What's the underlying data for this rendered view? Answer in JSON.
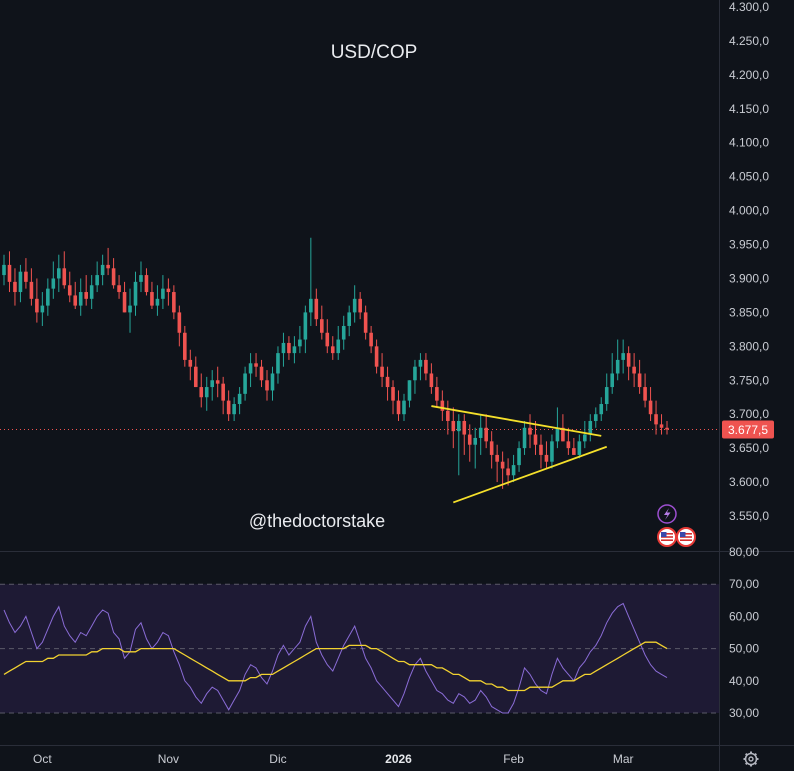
{
  "chart_data": [
    {
      "type": "candlestick",
      "title": "USD/COP",
      "watermark": "@thedoctorstake",
      "ylim": [
        3520,
        4300
      ],
      "yticks": [
        "4.300,0",
        "4.250,0",
        "4.200,0",
        "4.150,0",
        "4.100,0",
        "4.050,0",
        "4.000,0",
        "3.950,0",
        "3.900,0",
        "3.850,0",
        "3.800,0",
        "3.750,0",
        "3.700,0",
        "3.650,0",
        "3.600,0",
        "3.550,0"
      ],
      "ytick_values": [
        4300,
        4250,
        4200,
        4150,
        4100,
        4050,
        4000,
        3950,
        3900,
        3850,
        3800,
        3750,
        3700,
        3650,
        3600,
        3550
      ],
      "last_price": 3677.5,
      "last_price_label": "3.677,5",
      "up_color": "#26a69a",
      "down_color": "#ef5350",
      "x": [
        "2025-09-22",
        "2025-09-23",
        "2025-09-24",
        "2025-09-25",
        "2025-09-26",
        "2025-09-29",
        "2025-09-30",
        "2025-10-01",
        "2025-10-02",
        "2025-10-03",
        "2025-10-06",
        "2025-10-07",
        "2025-10-08",
        "2025-10-09",
        "2025-10-10",
        "2025-10-13",
        "2025-10-14",
        "2025-10-15",
        "2025-10-16",
        "2025-10-17",
        "2025-10-20",
        "2025-10-21",
        "2025-10-22",
        "2025-10-23",
        "2025-10-24",
        "2025-10-27",
        "2025-10-28",
        "2025-10-29",
        "2025-10-30",
        "2025-10-31",
        "2025-11-03",
        "2025-11-04",
        "2025-11-05",
        "2025-11-06",
        "2025-11-07",
        "2025-11-10",
        "2025-11-11",
        "2025-11-12",
        "2025-11-13",
        "2025-11-14",
        "2025-11-17",
        "2025-11-18",
        "2025-11-19",
        "2025-11-20",
        "2025-11-21",
        "2025-11-24",
        "2025-11-25",
        "2025-11-26",
        "2025-11-27",
        "2025-11-28",
        "2025-12-01",
        "2025-12-02",
        "2025-12-03",
        "2025-12-04",
        "2025-12-05",
        "2025-12-08",
        "2025-12-09",
        "2025-12-10",
        "2025-12-11",
        "2025-12-12",
        "2025-12-15",
        "2025-12-16",
        "2025-12-17",
        "2025-12-18",
        "2025-12-19",
        "2025-12-22",
        "2025-12-23",
        "2025-12-24",
        "2025-12-26",
        "2025-12-29",
        "2025-12-30",
        "2025-12-31",
        "2026-01-02",
        "2026-01-05",
        "2026-01-06",
        "2026-01-07",
        "2026-01-08",
        "2026-01-09",
        "2026-01-12",
        "2026-01-13",
        "2026-01-14",
        "2026-01-15",
        "2026-01-16",
        "2026-01-19",
        "2026-01-20",
        "2026-01-21",
        "2026-01-22",
        "2026-01-23",
        "2026-01-26",
        "2026-01-27",
        "2026-01-28",
        "2026-01-29",
        "2026-01-30",
        "2026-02-02",
        "2026-02-03",
        "2026-02-04",
        "2026-02-05",
        "2026-02-06",
        "2026-02-09",
        "2026-02-10",
        "2026-02-11",
        "2026-02-12",
        "2026-02-13",
        "2026-02-16",
        "2026-02-17",
        "2026-02-18",
        "2026-02-19",
        "2026-02-20",
        "2026-02-23",
        "2026-02-24",
        "2026-02-25",
        "2026-02-26",
        "2026-02-27",
        "2026-03-02",
        "2026-03-03",
        "2026-03-04",
        "2026-03-05",
        "2026-03-06",
        "2026-03-09",
        "2026-03-10",
        "2026-03-11",
        "2026-03-12"
      ],
      "open": [
        3905,
        3920,
        3895,
        3880,
        3910,
        3895,
        3870,
        3850,
        3860,
        3885,
        3900,
        3915,
        3890,
        3875,
        3860,
        3880,
        3870,
        3890,
        3905,
        3920,
        3915,
        3890,
        3880,
        3850,
        3860,
        3895,
        3905,
        3880,
        3860,
        3870,
        3885,
        3880,
        3850,
        3820,
        3780,
        3770,
        3740,
        3725,
        3740,
        3750,
        3745,
        3720,
        3700,
        3715,
        3730,
        3760,
        3775,
        3770,
        3750,
        3735,
        3760,
        3790,
        3805,
        3790,
        3800,
        3810,
        3850,
        3870,
        3840,
        3820,
        3800,
        3790,
        3810,
        3830,
        3850,
        3870,
        3850,
        3820,
        3800,
        3770,
        3755,
        3740,
        3720,
        3700,
        3720,
        3750,
        3770,
        3780,
        3760,
        3740,
        3720,
        3705,
        3690,
        3675,
        3690,
        3670,
        3655,
        3665,
        3680,
        3660,
        3640,
        3630,
        3620,
        3610,
        3625,
        3650,
        3680,
        3670,
        3655,
        3640,
        3630,
        3660,
        3680,
        3660,
        3650,
        3640,
        3660,
        3670,
        3690,
        3700,
        3715,
        3740,
        3760,
        3780,
        3790,
        3770,
        3760,
        3740,
        3720,
        3700,
        3685,
        3680
      ],
      "high": [
        3935,
        3940,
        3915,
        3920,
        3930,
        3915,
        3900,
        3880,
        3900,
        3925,
        3935,
        3940,
        3910,
        3895,
        3900,
        3905,
        3905,
        3925,
        3935,
        3945,
        3930,
        3905,
        3895,
        3885,
        3910,
        3925,
        3915,
        3895,
        3890,
        3905,
        3900,
        3890,
        3860,
        3830,
        3795,
        3785,
        3760,
        3755,
        3765,
        3770,
        3755,
        3735,
        3725,
        3740,
        3770,
        3790,
        3790,
        3780,
        3765,
        3770,
        3800,
        3820,
        3815,
        3815,
        3830,
        3860,
        3960,
        3885,
        3860,
        3840,
        3815,
        3830,
        3845,
        3860,
        3890,
        3880,
        3860,
        3830,
        3810,
        3790,
        3770,
        3750,
        3735,
        3730,
        3750,
        3780,
        3790,
        3790,
        3775,
        3755,
        3735,
        3720,
        3710,
        3700,
        3700,
        3685,
        3680,
        3700,
        3700,
        3675,
        3655,
        3645,
        3635,
        3640,
        3660,
        3690,
        3700,
        3690,
        3670,
        3660,
        3670,
        3710,
        3700,
        3680,
        3665,
        3670,
        3690,
        3700,
        3710,
        3725,
        3760,
        3790,
        3810,
        3810,
        3800,
        3790,
        3780,
        3760,
        3740,
        3720,
        3700,
        3690
      ],
      "low": [
        3890,
        3880,
        3860,
        3865,
        3885,
        3860,
        3835,
        3830,
        3845,
        3870,
        3880,
        3885,
        3865,
        3855,
        3845,
        3860,
        3855,
        3880,
        3890,
        3905,
        3885,
        3870,
        3850,
        3820,
        3845,
        3880,
        3875,
        3855,
        3845,
        3855,
        3860,
        3840,
        3800,
        3770,
        3750,
        3740,
        3710,
        3705,
        3720,
        3725,
        3700,
        3690,
        3690,
        3700,
        3720,
        3740,
        3755,
        3740,
        3720,
        3720,
        3745,
        3770,
        3780,
        3775,
        3790,
        3790,
        3830,
        3830,
        3810,
        3790,
        3780,
        3780,
        3795,
        3815,
        3835,
        3840,
        3810,
        3790,
        3760,
        3740,
        3720,
        3700,
        3690,
        3690,
        3710,
        3730,
        3750,
        3750,
        3730,
        3710,
        3690,
        3670,
        3650,
        3610,
        3640,
        3630,
        3620,
        3640,
        3650,
        3620,
        3600,
        3590,
        3595,
        3600,
        3615,
        3640,
        3650,
        3640,
        3620,
        3620,
        3620,
        3650,
        3660,
        3640,
        3640,
        3635,
        3650,
        3660,
        3680,
        3690,
        3705,
        3730,
        3750,
        3760,
        3750,
        3740,
        3730,
        3710,
        3690,
        3670,
        3670,
        3670
      ],
      "close": [
        3920,
        3895,
        3880,
        3910,
        3895,
        3870,
        3850,
        3860,
        3885,
        3900,
        3915,
        3890,
        3875,
        3860,
        3880,
        3870,
        3890,
        3905,
        3920,
        3915,
        3890,
        3880,
        3850,
        3860,
        3895,
        3905,
        3880,
        3860,
        3870,
        3885,
        3880,
        3850,
        3820,
        3780,
        3770,
        3740,
        3725,
        3740,
        3750,
        3745,
        3720,
        3700,
        3715,
        3730,
        3760,
        3775,
        3770,
        3750,
        3735,
        3760,
        3790,
        3805,
        3790,
        3800,
        3810,
        3850,
        3870,
        3840,
        3820,
        3800,
        3790,
        3810,
        3830,
        3850,
        3870,
        3850,
        3820,
        3800,
        3770,
        3755,
        3740,
        3720,
        3700,
        3720,
        3750,
        3770,
        3780,
        3760,
        3740,
        3720,
        3705,
        3690,
        3675,
        3690,
        3670,
        3655,
        3665,
        3680,
        3660,
        3640,
        3630,
        3620,
        3610,
        3625,
        3650,
        3680,
        3670,
        3655,
        3640,
        3630,
        3660,
        3680,
        3660,
        3650,
        3640,
        3660,
        3670,
        3690,
        3700,
        3715,
        3740,
        3760,
        3780,
        3790,
        3770,
        3760,
        3740,
        3720,
        3700,
        3685,
        3680,
        3677.5
      ],
      "trendlines": [
        {
          "from": [
            "2026-01-12",
            3712
          ],
          "to": [
            "2026-02-24",
            3668
          ],
          "color": "#f5e02b"
        },
        {
          "from": [
            "2026-01-16",
            3570
          ],
          "to": [
            "2026-02-25",
            3652
          ],
          "color": "#f5e02b"
        }
      ],
      "xticks": [
        {
          "label": "Oct",
          "x": "2025-10-01",
          "bold": false
        },
        {
          "label": "Nov",
          "x": "2025-11-03",
          "bold": false
        },
        {
          "label": "Dic",
          "x": "2025-12-01",
          "bold": false
        },
        {
          "label": "2026",
          "x": "2026-01-02",
          "bold": true
        },
        {
          "label": "Feb",
          "x": "2026-02-02",
          "bold": false
        },
        {
          "label": "Mar",
          "x": "2026-03-02",
          "bold": false
        }
      ],
      "icons": [
        "lightning-icon",
        "us-flag-icon",
        "us-flag-icon"
      ]
    },
    {
      "type": "line",
      "ylim": [
        22,
        80
      ],
      "yticks": [
        "80,00",
        "70,00",
        "60,00",
        "50,00",
        "40,00",
        "30,00"
      ],
      "ytick_values": [
        80,
        70,
        60,
        50,
        40,
        30
      ],
      "band": [
        30,
        70
      ],
      "midline": 50,
      "series": [
        {
          "color": "#8a6cd6",
          "values": [
            62,
            58,
            55,
            57,
            60,
            55,
            50,
            52,
            56,
            60,
            63,
            57,
            54,
            52,
            55,
            54,
            57,
            60,
            62,
            61,
            55,
            53,
            47,
            49,
            56,
            58,
            53,
            50,
            52,
            55,
            54,
            49,
            45,
            40,
            38,
            35,
            33,
            36,
            38,
            37,
            34,
            31,
            34,
            37,
            42,
            45,
            44,
            41,
            39,
            43,
            48,
            51,
            48,
            50,
            52,
            57,
            60,
            52,
            48,
            45,
            43,
            47,
            51,
            54,
            57,
            52,
            47,
            44,
            40,
            38,
            36,
            34,
            32,
            36,
            41,
            45,
            47,
            43,
            40,
            37,
            36,
            34,
            33,
            36,
            35,
            33,
            34,
            37,
            35,
            32,
            31,
            30,
            30,
            33,
            38,
            44,
            42,
            39,
            37,
            36,
            42,
            47,
            44,
            42,
            40,
            44,
            46,
            49,
            51,
            54,
            58,
            61,
            63,
            64,
            60,
            56,
            52,
            48,
            45,
            43,
            42,
            41
          ]
        },
        {
          "color": "#f2d230",
          "values": [
            42,
            43,
            44,
            45,
            46,
            46,
            46,
            46,
            47,
            47,
            48,
            48,
            48,
            48,
            48,
            48,
            49,
            49,
            50,
            50,
            50,
            50,
            49,
            49,
            49,
            50,
            50,
            50,
            50,
            50,
            50,
            50,
            49,
            48,
            47,
            46,
            45,
            44,
            43,
            42,
            41,
            40,
            40,
            40,
            40,
            41,
            41,
            42,
            42,
            42,
            43,
            44,
            45,
            46,
            47,
            48,
            49,
            50,
            50,
            50,
            50,
            50,
            50,
            51,
            51,
            51,
            51,
            50,
            50,
            49,
            48,
            47,
            46,
            46,
            45,
            45,
            45,
            45,
            45,
            44,
            44,
            43,
            42,
            42,
            41,
            40,
            40,
            40,
            39,
            39,
            38,
            38,
            37,
            37,
            37,
            37,
            38,
            38,
            38,
            38,
            38,
            39,
            40,
            40,
            40,
            41,
            42,
            42,
            43,
            44,
            45,
            46,
            47,
            48,
            49,
            50,
            51,
            52,
            52,
            52,
            51,
            50
          ]
        }
      ]
    }
  ]
}
